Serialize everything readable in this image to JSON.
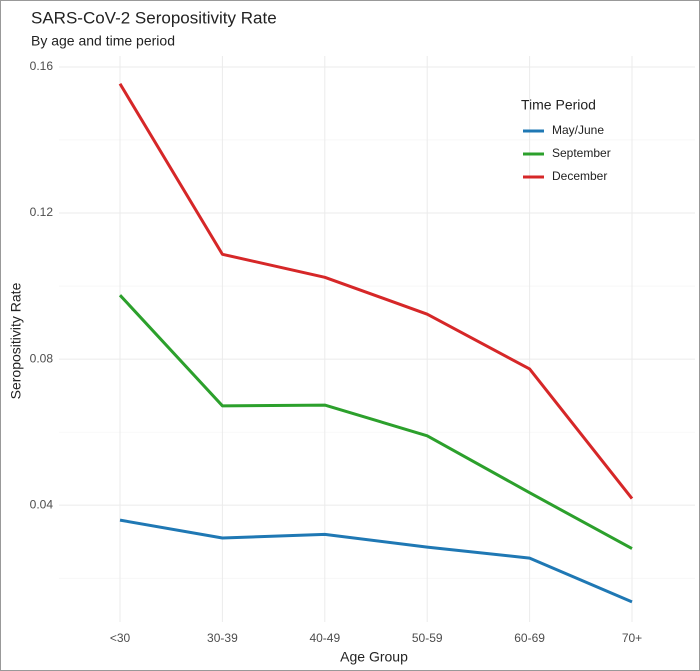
{
  "chart_data": {
    "type": "line",
    "title": "SARS-CoV-2 Seropositivity Rate",
    "subtitle": "By age and time period",
    "x_label": "Age Group",
    "y_label": "Seropositivity Rate",
    "categories": [
      "<30",
      "30-39",
      "40-49",
      "50-59",
      "60-69",
      "70+"
    ],
    "series": [
      {
        "name": "May/June",
        "color": "#1f78b4",
        "values": [
          0.0359,
          0.031,
          0.032,
          0.0285,
          0.0255,
          0.0135
        ]
      },
      {
        "name": "September",
        "color": "#2ca02c",
        "values": [
          0.0975,
          0.0672,
          0.0674,
          0.059,
          0.0434,
          0.0281
        ]
      },
      {
        "name": "December",
        "color": "#d62728",
        "values": [
          0.1554,
          0.1087,
          0.1024,
          0.0923,
          0.0773,
          0.0418
        ]
      }
    ],
    "ylim": [
      0.008,
      0.163
    ],
    "yticks": [
      0.04,
      0.08,
      0.12,
      0.16
    ],
    "minor_yticks": [
      0.02,
      0.06,
      0.1,
      0.14
    ],
    "grid": true,
    "legend_title": "Time Period",
    "legend_position": "top-right"
  }
}
